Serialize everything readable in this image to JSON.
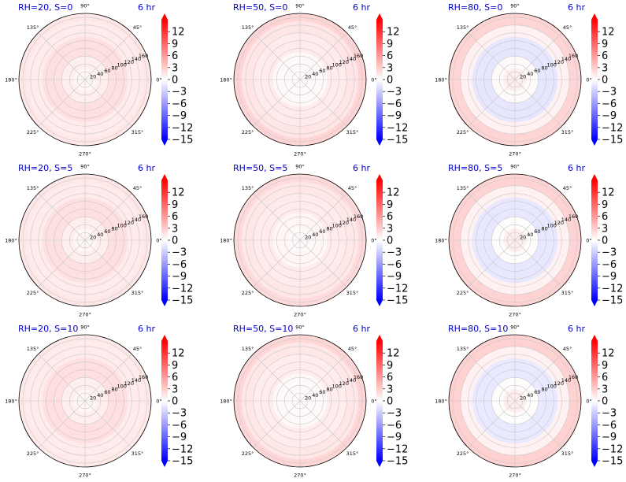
{
  "figure": {
    "time_label": "6 hr",
    "colormap": {
      "low": "#0000ff",
      "mid": "#ffffff",
      "high": "#ff0000"
    },
    "title_color": "#0000cc"
  },
  "chart_data": [
    {
      "type": "polar-scatter",
      "title": "RH=20, S=0",
      "rlim": [
        0,
        170
      ],
      "r_ticks": [
        "20",
        "40",
        "60",
        "80",
        "100",
        "120",
        "140",
        "160"
      ],
      "theta_ticks": [
        "0°",
        "45°",
        "90°",
        "135°",
        "180°",
        "225°",
        "270°",
        "315°"
      ],
      "clim": [
        -15,
        15
      ],
      "colorbar_ticks": [
        "12",
        "9",
        "6",
        "3",
        "0",
        "−3",
        "−6",
        "−9",
        "−12",
        "−15"
      ],
      "bands": [
        {
          "r": [
            0,
            30
          ],
          "value": 0.5
        },
        {
          "r": [
            30,
            60
          ],
          "value": 1
        },
        {
          "r": [
            60,
            110
          ],
          "value": 1.8
        },
        {
          "r": [
            110,
            150
          ],
          "value": 1.2
        },
        {
          "r": [
            150,
            170
          ],
          "value": 1.4
        }
      ]
    },
    {
      "type": "polar-scatter",
      "title": "RH=50, S=0",
      "rlim": [
        0,
        170
      ],
      "r_ticks": [
        "20",
        "40",
        "60",
        "80",
        "100",
        "120",
        "140",
        "160"
      ],
      "theta_ticks": [
        "0°",
        "45°",
        "90°",
        "135°",
        "180°",
        "225°",
        "270°",
        "315°"
      ],
      "clim": [
        -15,
        15
      ],
      "colorbar_ticks": [
        "12",
        "9",
        "6",
        "3",
        "0",
        "−3",
        "−6",
        "−9",
        "−12",
        "−15"
      ],
      "bands": [
        {
          "r": [
            0,
            30
          ],
          "value": 0.3
        },
        {
          "r": [
            30,
            70
          ],
          "value": 0.4
        },
        {
          "r": [
            70,
            120
          ],
          "value": 1.2
        },
        {
          "r": [
            120,
            150
          ],
          "value": 1.5
        },
        {
          "r": [
            150,
            170
          ],
          "value": 2.5
        }
      ]
    },
    {
      "type": "polar-scatter",
      "title": "RH=80, S=0",
      "rlim": [
        0,
        170
      ],
      "r_ticks": [
        "20",
        "40",
        "60",
        "80",
        "100",
        "120",
        "140",
        "160"
      ],
      "theta_ticks": [
        "0°",
        "45°",
        "90°",
        "135°",
        "180°",
        "225°",
        "270°",
        "315°"
      ],
      "clim": [
        -15,
        15
      ],
      "colorbar_ticks": [
        "12",
        "9",
        "6",
        "3",
        "0",
        "−3",
        "−6",
        "−9",
        "−12",
        "−15"
      ],
      "bands": [
        {
          "r": [
            0,
            30
          ],
          "value": 1
        },
        {
          "r": [
            30,
            60
          ],
          "value": 0.3
        },
        {
          "r": [
            60,
            110
          ],
          "value": -1.5
        },
        {
          "r": [
            110,
            140
          ],
          "value": 0.8
        },
        {
          "r": [
            140,
            170
          ],
          "value": 2.5
        }
      ]
    },
    {
      "type": "polar-scatter",
      "title": "RH=20, S=5",
      "rlim": [
        0,
        170
      ],
      "r_ticks": [
        "20",
        "40",
        "60",
        "80",
        "100",
        "120",
        "140",
        "160"
      ],
      "theta_ticks": [
        "0°",
        "45°",
        "90°",
        "135°",
        "180°",
        "225°",
        "270°",
        "315°"
      ],
      "clim": [
        -15,
        15
      ],
      "colorbar_ticks": [
        "12",
        "9",
        "6",
        "3",
        "0",
        "−3",
        "−6",
        "−9",
        "−12",
        "−15"
      ],
      "bands": [
        {
          "r": [
            0,
            30
          ],
          "value": 0.5
        },
        {
          "r": [
            30,
            60
          ],
          "value": 1
        },
        {
          "r": [
            60,
            110
          ],
          "value": 1.8
        },
        {
          "r": [
            110,
            150
          ],
          "value": 1.2
        },
        {
          "r": [
            150,
            170
          ],
          "value": 1.4
        }
      ]
    },
    {
      "type": "polar-scatter",
      "title": "RH=50, S=5",
      "rlim": [
        0,
        170
      ],
      "r_ticks": [
        "20",
        "40",
        "60",
        "80",
        "100",
        "120",
        "140",
        "160"
      ],
      "theta_ticks": [
        "0°",
        "45°",
        "90°",
        "135°",
        "180°",
        "225°",
        "270°",
        "315°"
      ],
      "clim": [
        -15,
        15
      ],
      "colorbar_ticks": [
        "12",
        "9",
        "6",
        "3",
        "0",
        "−3",
        "−6",
        "−9",
        "−12",
        "−15"
      ],
      "bands": [
        {
          "r": [
            0,
            30
          ],
          "value": 0.3
        },
        {
          "r": [
            30,
            70
          ],
          "value": 0.5
        },
        {
          "r": [
            70,
            120
          ],
          "value": 1.2
        },
        {
          "r": [
            120,
            150
          ],
          "value": 1.4
        },
        {
          "r": [
            150,
            170
          ],
          "value": 2.2
        }
      ]
    },
    {
      "type": "polar-scatter",
      "title": "RH=80, S=5",
      "rlim": [
        0,
        170
      ],
      "r_ticks": [
        "20",
        "40",
        "60",
        "80",
        "100",
        "120",
        "140",
        "160"
      ],
      "theta_ticks": [
        "0°",
        "45°",
        "90°",
        "135°",
        "180°",
        "225°",
        "270°",
        "315°"
      ],
      "clim": [
        -15,
        15
      ],
      "colorbar_ticks": [
        "12",
        "9",
        "6",
        "3",
        "0",
        "−3",
        "−6",
        "−9",
        "−12",
        "−15"
      ],
      "bands": [
        {
          "r": [
            0,
            30
          ],
          "value": 1
        },
        {
          "r": [
            30,
            60
          ],
          "value": 0.2
        },
        {
          "r": [
            60,
            110
          ],
          "value": -1.4
        },
        {
          "r": [
            110,
            140
          ],
          "value": 0.8
        },
        {
          "r": [
            140,
            170
          ],
          "value": 2.6
        }
      ]
    },
    {
      "type": "polar-scatter",
      "title": "RH=20, S=10",
      "rlim": [
        0,
        170
      ],
      "r_ticks": [
        "20",
        "40",
        "60",
        "80",
        "100",
        "120",
        "140",
        "160"
      ],
      "theta_ticks": [
        "0°",
        "45°",
        "90°",
        "135°",
        "180°",
        "225°",
        "270°",
        "315°"
      ],
      "clim": [
        -15,
        15
      ],
      "colorbar_ticks": [
        "12",
        "9",
        "6",
        "3",
        "0",
        "−3",
        "−6",
        "−9",
        "−12",
        "−15"
      ],
      "bands": [
        {
          "r": [
            0,
            30
          ],
          "value": 0.5
        },
        {
          "r": [
            30,
            60
          ],
          "value": 1
        },
        {
          "r": [
            60,
            110
          ],
          "value": 1.9
        },
        {
          "r": [
            110,
            150
          ],
          "value": 1.2
        },
        {
          "r": [
            150,
            170
          ],
          "value": 1.3
        }
      ]
    },
    {
      "type": "polar-scatter",
      "title": "RH=50, S=10",
      "rlim": [
        0,
        170
      ],
      "r_ticks": [
        "20",
        "40",
        "60",
        "80",
        "100",
        "120",
        "140",
        "160"
      ],
      "theta_ticks": [
        "0°",
        "45°",
        "90°",
        "135°",
        "180°",
        "225°",
        "270°",
        "315°"
      ],
      "clim": [
        -15,
        15
      ],
      "colorbar_ticks": [
        "12",
        "9",
        "6",
        "3",
        "0",
        "−3",
        "−6",
        "−9",
        "−12",
        "−15"
      ],
      "bands": [
        {
          "r": [
            0,
            30
          ],
          "value": 0.3
        },
        {
          "r": [
            30,
            70
          ],
          "value": 0.4
        },
        {
          "r": [
            70,
            120
          ],
          "value": 1.1
        },
        {
          "r": [
            120,
            150
          ],
          "value": 1.4
        },
        {
          "r": [
            150,
            170
          ],
          "value": 2.4
        }
      ]
    },
    {
      "type": "polar-scatter",
      "title": "RH=80, S=10",
      "rlim": [
        0,
        170
      ],
      "r_ticks": [
        "20",
        "40",
        "60",
        "80",
        "100",
        "120",
        "140",
        "160"
      ],
      "theta_ticks": [
        "0°",
        "45°",
        "90°",
        "135°",
        "180°",
        "225°",
        "270°",
        "315°"
      ],
      "clim": [
        -15,
        15
      ],
      "colorbar_ticks": [
        "12",
        "9",
        "6",
        "3",
        "0",
        "−3",
        "−6",
        "−9",
        "−12",
        "−15"
      ],
      "bands": [
        {
          "r": [
            0,
            30
          ],
          "value": 1
        },
        {
          "r": [
            30,
            60
          ],
          "value": 0.2
        },
        {
          "r": [
            60,
            110
          ],
          "value": -1.3
        },
        {
          "r": [
            110,
            140
          ],
          "value": 0.8
        },
        {
          "r": [
            140,
            170
          ],
          "value": 2.7
        }
      ]
    }
  ]
}
